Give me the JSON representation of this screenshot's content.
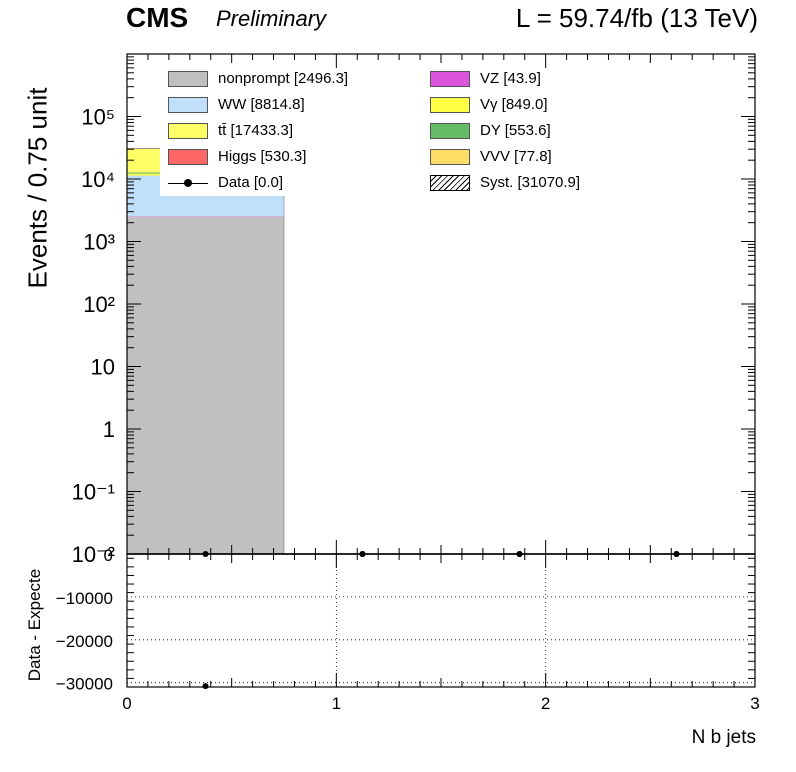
{
  "header": {
    "experiment": "CMS",
    "status": "Preliminary",
    "lumi": "L = 59.74/fb (13 TeV)"
  },
  "colors": {
    "nonprompt": "#c0c0c0",
    "WW": "#bfdffa",
    "ttbar": "#ffff66",
    "Higgs": "#ff6666",
    "VZ": "#dd55dd",
    "Vgamma": "#ffff44",
    "DY": "#66bb66",
    "VVV": "#ffdd66"
  },
  "legend": {
    "left": [
      {
        "label": "nonprompt [2496.3]",
        "color": "#c0c0c0",
        "kind": "box"
      },
      {
        "label": "WW [8814.8]",
        "color": "#bfdffa",
        "kind": "box"
      },
      {
        "label": "tt̄ [17433.3]",
        "color": "#ffff66",
        "kind": "box"
      },
      {
        "label": "Higgs [530.3]",
        "color": "#ff6666",
        "kind": "box"
      },
      {
        "label": "Data [0.0]",
        "color": "#000000",
        "kind": "marker"
      }
    ],
    "right": [
      {
        "label": "VZ [43.9]",
        "color": "#dd55dd",
        "kind": "box"
      },
      {
        "label": "Vγ [849.0]",
        "color": "#ffff44",
        "kind": "box"
      },
      {
        "label": "DY [553.6]",
        "color": "#66bb66",
        "kind": "box"
      },
      {
        "label": "VVV [77.8]",
        "color": "#ffdd66",
        "kind": "box"
      },
      {
        "label": "Syst. [31070.9]",
        "color": "#ffffff",
        "kind": "hatch"
      }
    ]
  },
  "chart_data": [
    {
      "type": "bar",
      "stacked": true,
      "log_y": true,
      "ylabel": "Events / 0.75 unit",
      "ylim": [
        0.01,
        1000000
      ],
      "xlim": [
        0,
        3
      ],
      "bin_edges": [
        0,
        0.75,
        1.5,
        2.25,
        3
      ],
      "yticks": [
        {
          "value": 0.01,
          "label": "10⁻²"
        },
        {
          "value": 0.1,
          "label": "10⁻¹"
        },
        {
          "value": 1,
          "label": "1"
        },
        {
          "value": 10,
          "label": "10"
        },
        {
          "value": 100,
          "label": "10²"
        },
        {
          "value": 1000,
          "label": "10³"
        },
        {
          "value": 10000,
          "label": "10⁴"
        },
        {
          "value": 100000,
          "label": "10⁵"
        }
      ],
      "series": [
        {
          "name": "nonprompt",
          "values": [
            2496.3,
            0,
            0,
            0
          ]
        },
        {
          "name": "VZ",
          "values": [
            43.9,
            0,
            0,
            0
          ]
        },
        {
          "name": "WW",
          "values": [
            8814.8,
            0,
            0,
            0
          ]
        },
        {
          "name": "Vγ",
          "values": [
            849.0,
            0,
            0,
            0
          ]
        },
        {
          "name": "DY",
          "values": [
            553.6,
            0,
            0,
            0
          ]
        },
        {
          "name": "VVV",
          "values": [
            77.8,
            0,
            0,
            0
          ]
        },
        {
          "name": "tt̄",
          "values": [
            17433.3,
            0,
            0,
            0
          ]
        },
        {
          "name": "Higgs",
          "values": [
            530.3,
            0,
            0,
            0
          ]
        },
        {
          "name": "Data",
          "values": [
            0,
            0,
            0,
            0
          ]
        }
      ]
    },
    {
      "type": "scatter",
      "ylabel": "Data - Expecte",
      "xlabel": "N b jets",
      "xlim": [
        0,
        3
      ],
      "ylim": [
        -31000,
        0
      ],
      "x": [
        0.375,
        1.125,
        1.875,
        2.625
      ],
      "y": [
        -30799,
        0,
        0,
        0
      ],
      "xticks": [
        {
          "value": 0,
          "label": "0"
        },
        {
          "value": 1,
          "label": "1"
        },
        {
          "value": 2,
          "label": "2"
        },
        {
          "value": 3,
          "label": "3"
        }
      ],
      "yticks": [
        {
          "value": 0,
          "label": "0"
        },
        {
          "value": -10000,
          "label": "−10000"
        },
        {
          "value": -20000,
          "label": "−20000"
        },
        {
          "value": -30000,
          "label": "−30000"
        }
      ]
    }
  ]
}
